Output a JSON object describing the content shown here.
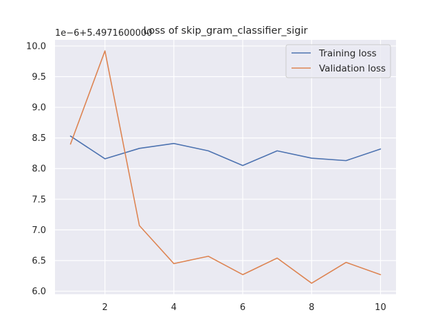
{
  "chart_data": {
    "type": "line",
    "title": "Loss of skip_gram_classifier_sigir",
    "offset_label": "1e−6+5.4971600000",
    "xlabel": "",
    "ylabel": "",
    "xlim": [
      0.55,
      10.45
    ],
    "ylim": [
      5.95,
      10.1
    ],
    "xticks": [
      2,
      4,
      6,
      8,
      10
    ],
    "yticks": [
      6.0,
      6.5,
      7.0,
      7.5,
      8.0,
      8.5,
      9.0,
      9.5,
      10.0
    ],
    "grid": true,
    "legend_position": "top-right",
    "x": [
      1,
      2,
      3,
      4,
      5,
      6,
      7,
      8,
      9,
      10
    ],
    "series": [
      {
        "name": "Training loss",
        "color": "#4c72b0",
        "values": [
          8.53,
          8.16,
          8.33,
          8.41,
          8.29,
          8.05,
          8.29,
          8.17,
          8.13,
          8.32
        ]
      },
      {
        "name": "Validation loss",
        "color": "#dd8452",
        "values": [
          8.4,
          9.92,
          7.07,
          6.45,
          6.57,
          6.27,
          6.54,
          6.13,
          6.47,
          6.27
        ]
      }
    ]
  }
}
